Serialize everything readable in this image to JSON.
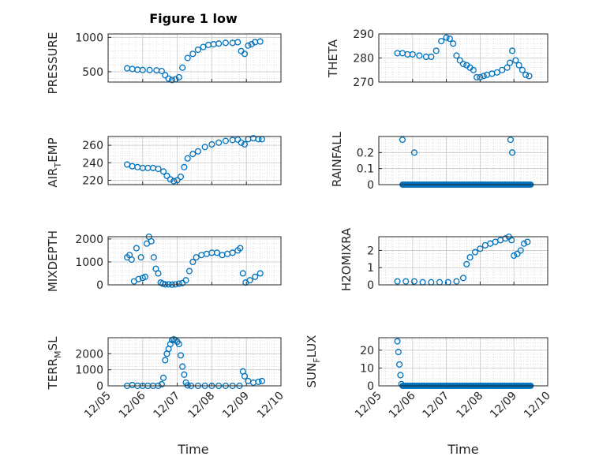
{
  "figure": {
    "title": "Figure 1 low",
    "x_axis_label": "Time",
    "x_tick_labels": [
      "12/05",
      "12/06",
      "12/07",
      "12/08",
      "12/09",
      "12/10"
    ],
    "marker_color": "#0072BD",
    "grid": "on (major + minor dotted)"
  },
  "chart_data": [
    {
      "type": "scatter",
      "ylabel": "PRESSURE",
      "xlim": [
        0,
        5
      ],
      "ylim": [
        350,
        1050
      ],
      "yticks": [
        500,
        1000
      ],
      "x": [
        0.55,
        0.7,
        0.85,
        1.0,
        1.2,
        1.4,
        1.55,
        1.65,
        1.75,
        1.85,
        1.95,
        2.05,
        2.15,
        2.3,
        2.45,
        2.6,
        2.75,
        2.9,
        3.05,
        3.2,
        3.4,
        3.6,
        3.75,
        3.85,
        3.95,
        4.05,
        4.15,
        4.25,
        4.4
      ],
      "y": [
        550,
        540,
        530,
        525,
        525,
        520,
        510,
        450,
        400,
        380,
        390,
        420,
        560,
        700,
        760,
        820,
        860,
        890,
        900,
        910,
        920,
        920,
        930,
        800,
        760,
        880,
        900,
        930,
        940
      ]
    },
    {
      "type": "scatter",
      "ylabel": "THETA",
      "xlim": [
        0,
        5
      ],
      "ylim": [
        270,
        290
      ],
      "yticks": [
        270,
        280,
        290
      ],
      "x": [
        0.55,
        0.7,
        0.85,
        1.0,
        1.2,
        1.4,
        1.55,
        1.7,
        1.85,
        2.0,
        2.1,
        2.2,
        2.3,
        2.4,
        2.5,
        2.6,
        2.7,
        2.8,
        2.9,
        3.0,
        3.1,
        3.2,
        3.35,
        3.5,
        3.65,
        3.8,
        3.88,
        3.95,
        4.05,
        4.15,
        4.25,
        4.35,
        4.45
      ],
      "y": [
        282,
        282,
        281.5,
        281.5,
        281,
        280.5,
        280.5,
        283,
        287,
        288.5,
        288,
        286,
        281,
        279,
        277.5,
        277,
        276,
        275,
        272,
        272,
        272.5,
        273,
        273.5,
        274,
        275,
        276,
        278,
        283,
        279,
        277,
        275,
        273,
        272.5
      ]
    },
    {
      "type": "scatter",
      "ylabel": "AIR_TEMP",
      "xlim": [
        0,
        5
      ],
      "ylim": [
        215,
        270
      ],
      "yticks": [
        220,
        240,
        260
      ],
      "x": [
        0.55,
        0.7,
        0.85,
        1.0,
        1.15,
        1.3,
        1.45,
        1.6,
        1.7,
        1.8,
        1.9,
        2.0,
        2.1,
        2.2,
        2.3,
        2.45,
        2.6,
        2.8,
        3.0,
        3.2,
        3.4,
        3.6,
        3.75,
        3.85,
        3.95,
        4.05,
        4.2,
        4.35,
        4.45
      ],
      "y": [
        238,
        236,
        235,
        234,
        234,
        234,
        233,
        230,
        225,
        221,
        219,
        220,
        224,
        235,
        245,
        250,
        253,
        258,
        261,
        263,
        265,
        266,
        266.5,
        263,
        261,
        267,
        268,
        267,
        267
      ]
    },
    {
      "type": "scatter",
      "ylabel": "RAINFALL",
      "xlim": [
        0,
        5
      ],
      "ylim": [
        0,
        0.3
      ],
      "yticks": [
        0,
        0.1,
        0.2
      ],
      "x": [
        0.7,
        1.05,
        3.9,
        3.95
      ],
      "y": [
        0.28,
        0.2,
        0.28,
        0.2
      ],
      "baseline_range": [
        0.7,
        4.5
      ],
      "baseline_value": 0
    },
    {
      "type": "scatter",
      "ylabel": "MIXDEPTH",
      "xlim": [
        0,
        5
      ],
      "ylim": [
        0,
        2100
      ],
      "yticks": [
        0,
        1000,
        2000
      ],
      "x": [
        0.55,
        0.62,
        0.68,
        0.75,
        0.82,
        0.88,
        0.95,
        1.0,
        1.07,
        1.12,
        1.18,
        1.25,
        1.32,
        1.38,
        1.45,
        1.52,
        1.58,
        1.65,
        1.75,
        1.85,
        1.95,
        2.05,
        2.15,
        2.25,
        2.35,
        2.45,
        2.55,
        2.7,
        2.85,
        3.0,
        3.15,
        3.3,
        3.45,
        3.6,
        3.75,
        3.82,
        3.9,
        3.98,
        4.1,
        4.25,
        4.4
      ],
      "y": [
        1200,
        1300,
        1100,
        150,
        1600,
        250,
        1200,
        300,
        350,
        1800,
        2100,
        1900,
        1200,
        700,
        500,
        100,
        50,
        20,
        20,
        10,
        20,
        50,
        80,
        200,
        600,
        1000,
        1200,
        1300,
        1350,
        1400,
        1400,
        1300,
        1350,
        1400,
        1500,
        1600,
        500,
        100,
        200,
        350,
        500
      ]
    },
    {
      "type": "scatter",
      "ylabel": "H2OMIXRA",
      "xlim": [
        0,
        5
      ],
      "ylim": [
        0,
        2.8
      ],
      "yticks": [
        0,
        1,
        2
      ],
      "x": [
        0.55,
        0.8,
        1.05,
        1.3,
        1.55,
        1.8,
        2.05,
        2.3,
        2.5,
        2.6,
        2.7,
        2.85,
        3.0,
        3.15,
        3.3,
        3.45,
        3.6,
        3.75,
        3.85,
        3.93,
        4.0,
        4.1,
        4.2,
        4.3,
        4.4
      ],
      "y": [
        0.2,
        0.2,
        0.2,
        0.15,
        0.15,
        0.15,
        0.15,
        0.2,
        0.4,
        1.2,
        1.6,
        1.9,
        2.1,
        2.3,
        2.4,
        2.5,
        2.6,
        2.7,
        2.8,
        2.6,
        1.7,
        1.8,
        2.0,
        2.4,
        2.5
      ]
    },
    {
      "type": "scatter",
      "ylabel": "TERR_MSL",
      "xlim": [
        0,
        5
      ],
      "ylim": [
        0,
        3000
      ],
      "yticks": [
        0,
        1000,
        2000
      ],
      "x": [
        0.55,
        0.7,
        0.85,
        1.0,
        1.15,
        1.3,
        1.45,
        1.55,
        1.6,
        1.65,
        1.7,
        1.75,
        1.8,
        1.85,
        1.9,
        1.95,
        2.0,
        2.05,
        2.1,
        2.15,
        2.2,
        2.25,
        2.3,
        2.4,
        2.6,
        2.8,
        3.0,
        3.2,
        3.4,
        3.6,
        3.8,
        3.9,
        3.95,
        4.05,
        4.2,
        4.35,
        4.45
      ],
      "y": [
        0,
        50,
        0,
        0,
        0,
        0,
        0,
        100,
        500,
        1600,
        2000,
        2300,
        2600,
        2850,
        2900,
        2850,
        2750,
        2600,
        1900,
        1200,
        700,
        200,
        30,
        0,
        0,
        0,
        0,
        0,
        0,
        0,
        0,
        900,
        600,
        300,
        200,
        250,
        300
      ]
    },
    {
      "type": "scatter",
      "ylabel": "SUN_FLUX",
      "xlim": [
        0,
        5
      ],
      "ylim": [
        0,
        27
      ],
      "yticks": [
        0,
        10,
        20
      ],
      "x": [
        0.55,
        0.58,
        0.61,
        0.64,
        0.67
      ],
      "y": [
        25,
        19,
        12,
        6,
        1
      ],
      "baseline_range": [
        0.7,
        4.5
      ],
      "baseline_value": 0
    }
  ]
}
